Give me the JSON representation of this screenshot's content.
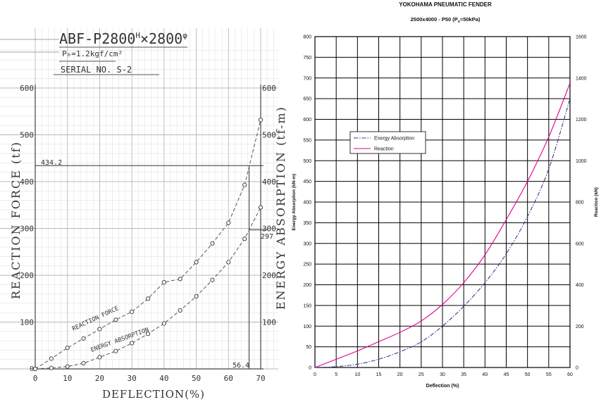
{
  "left_chart": {
    "header": {
      "model_prefix": "ABF-P2800",
      "model_h": "H",
      "model_suffix": "×2800",
      "model_phi": "φ",
      "pressure": "P₀=1.2kgf/cm²",
      "serial": "SERIAL NO. S-2"
    },
    "xlabel": "DEFLECTION(%)",
    "ylabel_left": "REACTION FORCE (tf)",
    "ylabel_right": "ENERGY ABSORPTION (tf-m)",
    "annotations": {
      "reaction_max": "434.2",
      "energy_max": "297",
      "deflection_max": "56.4"
    }
  },
  "right_chart": {
    "title": "YOKOHAMA PNEUMATIC FENDER",
    "subtitle_prefix": "2500x4000 - P50 (P",
    "subtitle_sub": "o",
    "subtitle_suffix": "=50kPa)",
    "xlabel": "Deflection (%)",
    "ylabel_left": "Energy Absorption (kN-m)",
    "ylabel_right": "Reaction (kN)"
  },
  "chart_data": [
    {
      "type": "line",
      "title": "ABF-P2800 H×2800 φ",
      "xlabel": "DEFLECTION(%)",
      "ylabel": "REACTION FORCE (tf)",
      "ylabel_right": "ENERGY ABSORPTION (tf-m)",
      "xlim": [
        0,
        70
      ],
      "ylim": [
        0,
        600
      ],
      "ylim_right": [
        0,
        600
      ],
      "x_ticks": [
        0,
        10,
        20,
        30,
        40,
        50,
        60,
        70
      ],
      "y_ticks": [
        100,
        200,
        300,
        400,
        500,
        600
      ],
      "y_ticks_right": [
        100,
        200,
        300,
        400,
        500,
        600
      ],
      "series": [
        {
          "name": "REACTION FORCE",
          "axis": "left",
          "marker": "circle",
          "x": [
            0,
            5,
            10,
            15,
            20,
            25,
            30,
            35,
            40,
            45,
            50,
            55,
            60,
            65,
            70
          ],
          "y": [
            0,
            22,
            45,
            65,
            85,
            105,
            122,
            150,
            185,
            192,
            228,
            268,
            312,
            393,
            532
          ]
        },
        {
          "name": "ENERGY ABSORPTION",
          "axis": "right",
          "marker": "circle",
          "x": [
            0,
            5,
            10,
            15,
            20,
            25,
            30,
            35,
            40,
            45,
            50,
            55,
            60,
            65,
            70
          ],
          "y": [
            0,
            2,
            5,
            12,
            25,
            38,
            55,
            75,
            97,
            125,
            155,
            190,
            228,
            278,
            345
          ]
        }
      ],
      "grid": true
    },
    {
      "type": "line",
      "title": "YOKOHAMA PNEUMATIC FENDER",
      "subtitle": "2500x4000 - P50 (Po=50kPa)",
      "xlabel": "Deflection (%)",
      "ylabel": "Energy Absorption (kN-m)",
      "ylabel_right": "Reaction (kN)",
      "xlim": [
        0,
        60
      ],
      "ylim": [
        0,
        800
      ],
      "ylim_right": [
        0,
        1600
      ],
      "x_ticks": [
        0,
        5,
        10,
        15,
        20,
        25,
        30,
        35,
        40,
        45,
        50,
        55,
        60
      ],
      "y_ticks": [
        0,
        50,
        100,
        150,
        200,
        250,
        300,
        350,
        400,
        450,
        500,
        550,
        600,
        650,
        700,
        750,
        800
      ],
      "y_ticks_right": [
        0,
        200,
        400,
        600,
        800,
        1000,
        1200,
        1400,
        1600
      ],
      "legend_position": "center-left",
      "series": [
        {
          "name": "Energy Absorption",
          "axis": "left",
          "color": "#3a3a8c",
          "style": "dashdot",
          "x": [
            0,
            5,
            10,
            15,
            20,
            25,
            30,
            35,
            40,
            45,
            50,
            55,
            60
          ],
          "y": [
            0,
            2,
            8,
            20,
            38,
            62,
            100,
            148,
            205,
            275,
            365,
            480,
            650
          ]
        },
        {
          "name": "Reaction",
          "axis": "right",
          "color": "#e0008c",
          "style": "solid",
          "x": [
            0,
            5,
            10,
            15,
            20,
            25,
            30,
            35,
            40,
            45,
            50,
            55,
            60
          ],
          "y": [
            0,
            40,
            80,
            125,
            170,
            225,
            305,
            410,
            545,
            715,
            900,
            1115,
            1375
          ]
        }
      ],
      "grid": true
    }
  ]
}
